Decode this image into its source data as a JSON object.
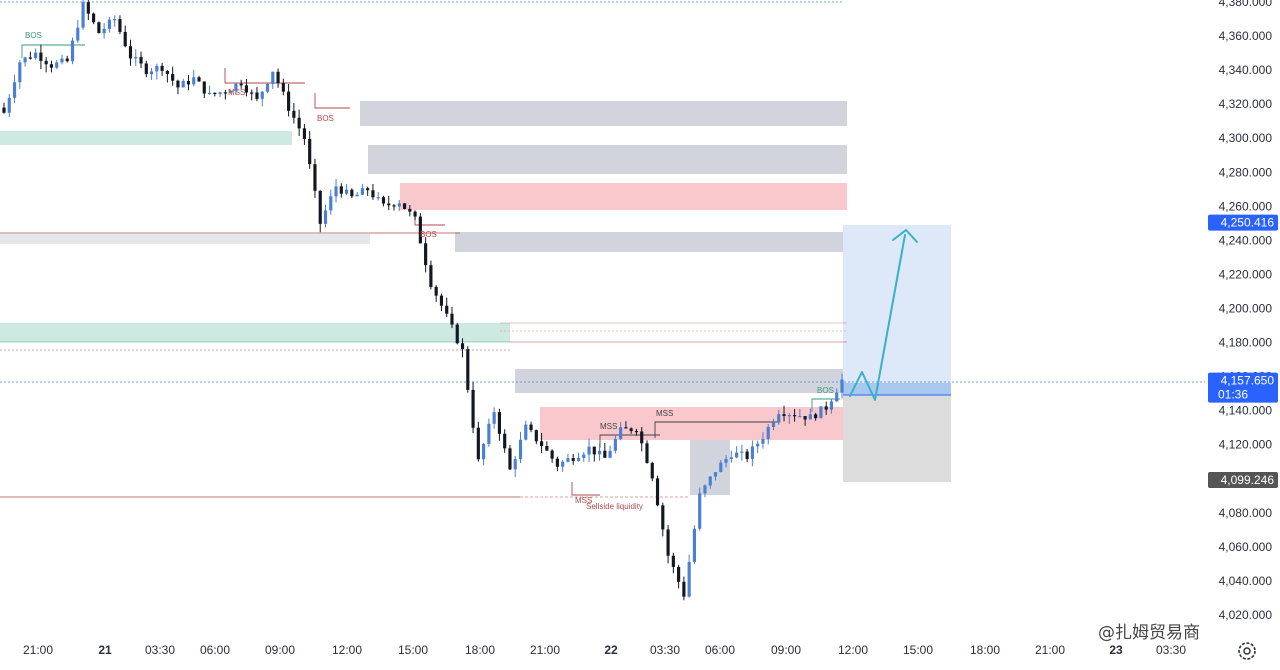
{
  "chart_data": {
    "type": "candlestick",
    "y_ticks": [
      "4,380.000",
      "4,360.000",
      "4,340.000",
      "4,320.000",
      "4,300.000",
      "4,280.000",
      "4,260.000",
      "4,240.000",
      "4,220.000",
      "4,200.000",
      "4,180.000",
      "4,160.000",
      "4,140.000",
      "4,120.000",
      "4,100.000",
      "4,080.000",
      "4,060.000",
      "4,040.000",
      "4,020.000"
    ],
    "y_tick_values": [
      4380,
      4360,
      4340,
      4320,
      4300,
      4280,
      4260,
      4240,
      4220,
      4200,
      4180,
      4160,
      4140,
      4120,
      4100,
      4080,
      4060,
      4040,
      4020
    ],
    "ylim": [
      4016,
      4382
    ],
    "x_ticks": [
      {
        "label": "21:00",
        "bold": false
      },
      {
        "label": "21",
        "bold": true
      },
      {
        "label": "03:30",
        "bold": false
      },
      {
        "label": "06:00",
        "bold": false
      },
      {
        "label": "09:00",
        "bold": false
      },
      {
        "label": "12:00",
        "bold": false
      },
      {
        "label": "15:00",
        "bold": false
      },
      {
        "label": "18:00",
        "bold": false
      },
      {
        "label": "21:00",
        "bold": false
      },
      {
        "label": "22",
        "bold": true
      },
      {
        "label": "03:30",
        "bold": false
      },
      {
        "label": "06:00",
        "bold": false
      },
      {
        "label": "09:00",
        "bold": false
      },
      {
        "label": "12:00",
        "bold": false
      },
      {
        "label": "15:00",
        "bold": false
      },
      {
        "label": "18:00",
        "bold": false
      },
      {
        "label": "21:00",
        "bold": false
      },
      {
        "label": "23",
        "bold": true
      },
      {
        "label": "03:30",
        "bold": false
      }
    ],
    "price_badges": [
      {
        "value": "4,250.416",
        "sub": "",
        "price": 4250.4,
        "color": "#2962ff"
      },
      {
        "value": "4,157.650",
        "sub": "01:36",
        "price": 4157.65,
        "color": "#2962ff"
      },
      {
        "value": "4,099.246",
        "sub": "",
        "price": 4099.25,
        "color": "#555555"
      }
    ],
    "annotations": [
      "BOS",
      "MSS",
      "BOS",
      "BOS",
      "MSS",
      "MSS",
      "MSS",
      "Sellside liquidity",
      "BOS"
    ],
    "candle_key_prices": [
      4315,
      4345,
      4350,
      4343,
      4345,
      4378,
      4362,
      4370,
      4348,
      4340,
      4342,
      4330,
      4335,
      4325,
      4328,
      4333,
      4322,
      4340,
      4318,
      4300,
      4250,
      4272,
      4265,
      4270,
      4260,
      4263,
      4252,
      4215,
      4195,
      4175,
      4110,
      4140,
      4105,
      4130,
      4120,
      4108,
      4113,
      4118,
      4112,
      4128,
      4130,
      4102,
      4055,
      4032,
      4090,
      4105,
      4115,
      4113,
      4125,
      4140,
      4138,
      4136,
      4142,
      4158
    ],
    "colors": {
      "bull": "#4a7fd4",
      "bear": "#131722",
      "supply": "#f8c8cc",
      "demand": "#cde9e1",
      "neutral": "#d1d4dc",
      "target": "#dde9f8",
      "arrow": "#3ab0c9"
    }
  },
  "watermark": "@扎姆贸易商"
}
